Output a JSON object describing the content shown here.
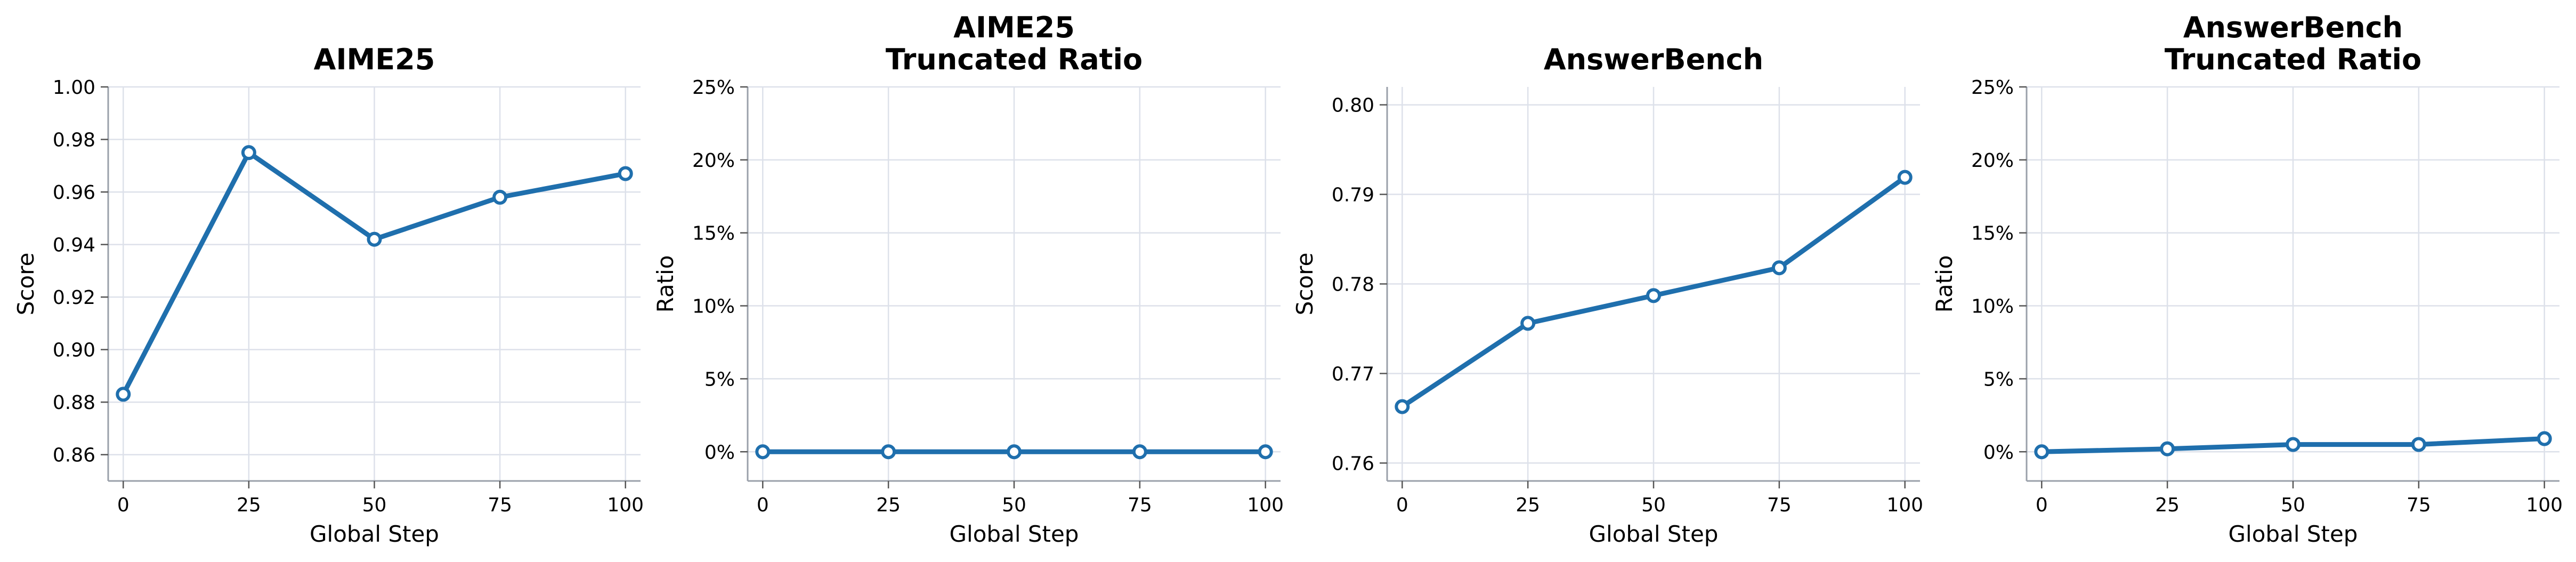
{
  "colors": {
    "series": "#1f6fad"
  },
  "chart_data": [
    {
      "type": "line",
      "title": [
        "AIME25"
      ],
      "xlabel": "Global Step",
      "ylabel": "Score",
      "x": [
        0,
        25,
        50,
        75,
        100
      ],
      "xticks": [
        "0",
        "25",
        "50",
        "75",
        "100"
      ],
      "xlim": [
        -3,
        103
      ],
      "ylim": [
        0.85,
        1.0
      ],
      "yticks": [
        0.86,
        0.88,
        0.9,
        0.92,
        0.94,
        0.96,
        0.98,
        1.0
      ],
      "ytick_labels": [
        "0.86",
        "0.88",
        "0.90",
        "0.92",
        "0.94",
        "0.96",
        "0.98",
        "1.00"
      ],
      "grid": true,
      "series": [
        {
          "values": [
            0.883,
            0.975,
            0.942,
            0.958,
            0.967
          ]
        }
      ]
    },
    {
      "type": "line",
      "title": [
        "AIME25",
        "Truncated Ratio"
      ],
      "xlabel": "Global Step",
      "ylabel": "Ratio",
      "x": [
        0,
        25,
        50,
        75,
        100
      ],
      "xticks": [
        "0",
        "25",
        "50",
        "75",
        "100"
      ],
      "xlim": [
        -3,
        103
      ],
      "ylim": [
        -2,
        25
      ],
      "yticks": [
        0,
        5,
        10,
        15,
        20,
        25
      ],
      "ytick_labels": [
        "0%",
        "5%",
        "10%",
        "15%",
        "20%",
        "25%"
      ],
      "grid": true,
      "series": [
        {
          "values": [
            0,
            0,
            0,
            0,
            0
          ]
        }
      ]
    },
    {
      "type": "line",
      "title": [
        "AnswerBench"
      ],
      "xlabel": "Global Step",
      "ylabel": "Score",
      "x": [
        0,
        25,
        50,
        75,
        100
      ],
      "xticks": [
        "0",
        "25",
        "50",
        "75",
        "100"
      ],
      "xlim": [
        -3,
        103
      ],
      "ylim": [
        0.758,
        0.802
      ],
      "yticks": [
        0.76,
        0.77,
        0.78,
        0.79,
        0.8
      ],
      "ytick_labels": [
        "0.76",
        "0.77",
        "0.78",
        "0.79",
        "0.80"
      ],
      "grid": true,
      "series": [
        {
          "values": [
            0.7663,
            0.7756,
            0.7787,
            0.7818,
            0.7919
          ]
        }
      ]
    },
    {
      "type": "line",
      "title": [
        "AnswerBench",
        "Truncated Ratio"
      ],
      "xlabel": "Global Step",
      "ylabel": "Ratio",
      "x": [
        0,
        25,
        50,
        75,
        100
      ],
      "xticks": [
        "0",
        "25",
        "50",
        "75",
        "100"
      ],
      "xlim": [
        -3,
        103
      ],
      "ylim": [
        -2,
        25
      ],
      "yticks": [
        0,
        5,
        10,
        15,
        20,
        25
      ],
      "ytick_labels": [
        "0%",
        "5%",
        "10%",
        "15%",
        "20%",
        "25%"
      ],
      "grid": true,
      "series": [
        {
          "values": [
            0,
            0.2,
            0.5,
            0.5,
            0.9
          ]
        }
      ]
    }
  ]
}
